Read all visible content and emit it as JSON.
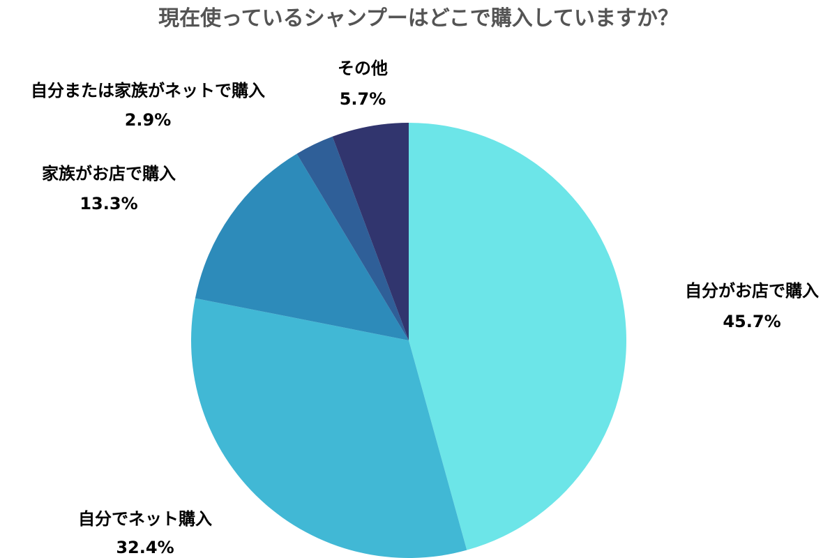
{
  "chart_data": {
    "type": "pie",
    "title": "現在使っているシャンプーはどこで購入していますか？",
    "start_angle_deg": 0,
    "direction": "clockwise",
    "slices": [
      {
        "label": "自分がお店で購入",
        "value": 45.7,
        "value_label": "45.7%",
        "color": "#6ce5e8"
      },
      {
        "label": "自分でネット購入",
        "value": 32.4,
        "value_label": "32.4%",
        "color": "#41b8d5"
      },
      {
        "label": "家族がお店で購入",
        "value": 13.3,
        "value_label": "13.3%",
        "color": "#2d8bba"
      },
      {
        "label": "自分または家族がネットで購入",
        "value": 2.9,
        "value_label": "2.9%",
        "color": "#2f5f98"
      },
      {
        "label": "その他",
        "value": 5.7,
        "value_label": "5.7%",
        "color": "#31356e"
      }
    ]
  }
}
